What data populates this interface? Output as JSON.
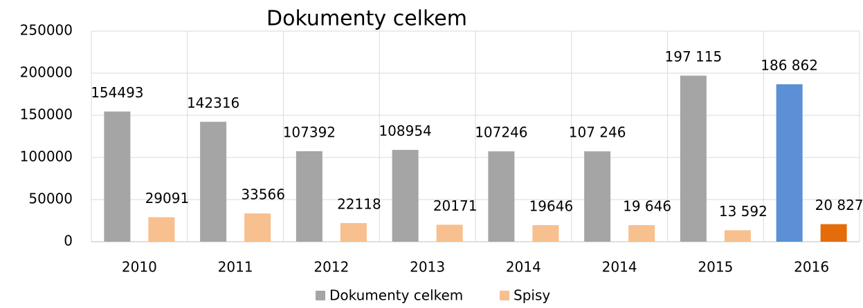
{
  "chart_data": {
    "type": "bar",
    "title": "Dokumenty celkem",
    "categories": [
      "2010",
      "2011",
      "2012",
      "2013",
      "2014",
      "2014",
      "2015",
      "2016"
    ],
    "series": [
      {
        "name": "Dokumenty celkem",
        "color": "#a5a5a5",
        "colors": [
          "#a5a5a5",
          "#a5a5a5",
          "#a5a5a5",
          "#a5a5a5",
          "#a5a5a5",
          "#a5a5a5",
          "#a5a5a5",
          "#5b8fd6"
        ],
        "values": [
          154493,
          142316,
          107392,
          108954,
          107246,
          107246,
          197115,
          186862
        ],
        "value_labels": [
          "154493",
          "142316",
          "107392",
          "108954",
          "107246",
          "107 246",
          "197 115",
          "186 862"
        ]
      },
      {
        "name": "Spisy",
        "color": "#f8bf8f",
        "colors": [
          "#f8bf8f",
          "#f8bf8f",
          "#f8bf8f",
          "#f8bf8f",
          "#f8bf8f",
          "#f8bf8f",
          "#f8bf8f",
          "#e46c0a"
        ],
        "values": [
          29091,
          33566,
          22118,
          20171,
          19646,
          19646,
          13592,
          20827
        ],
        "value_labels": [
          "29091",
          "33566",
          "22118",
          "20171",
          "19646",
          "19 646",
          "13 592",
          "20 827"
        ]
      }
    ],
    "ylim": [
      0,
      250000
    ],
    "yticks": [
      0,
      50000,
      100000,
      150000,
      200000,
      250000
    ],
    "grid": true,
    "legend": "bottom"
  }
}
